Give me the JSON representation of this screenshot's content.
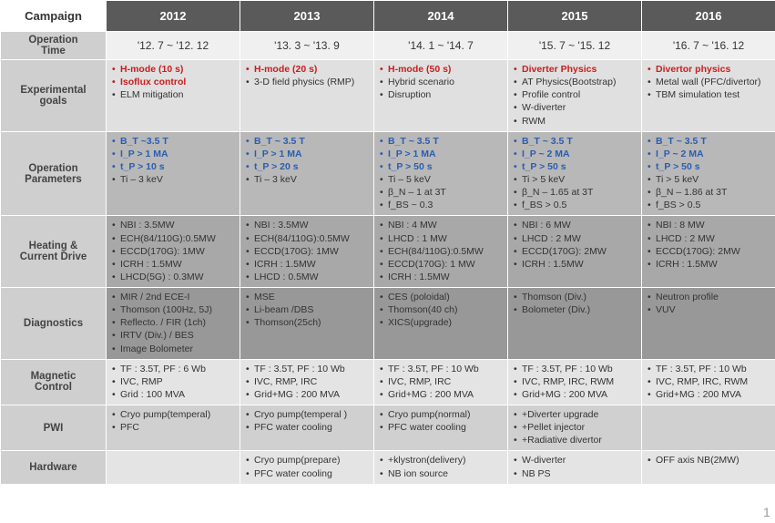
{
  "headers": {
    "rowLabel": "Campaign",
    "years": [
      "2012",
      "2013",
      "2014",
      "2015",
      "2016"
    ]
  },
  "rows": [
    {
      "label": "Operation Time",
      "cls": "row-opTime",
      "op": true,
      "cells": [
        "'12. 7  ~ '12. 12",
        "'13. 3  ~ '13. 9",
        "'14. 1  ~ '14. 7",
        "'15. 7  ~ '15. 12",
        "'16. 7  ~ '16. 12"
      ]
    },
    {
      "label": "Experimental goals",
      "cls": "row-goals",
      "cells": [
        [
          [
            "H-mode (10 s)",
            "red"
          ],
          [
            "Isoflux control",
            "red"
          ],
          [
            "ELM mitigation",
            ""
          ]
        ],
        [
          [
            "H-mode (20 s)",
            "red"
          ],
          [
            "3-D field physics (RMP)",
            ""
          ]
        ],
        [
          [
            "H-mode (50 s)",
            "red"
          ],
          [
            "Hybrid scenario",
            ""
          ],
          [
            "Disruption",
            ""
          ]
        ],
        [
          [
            "Diverter Physics",
            "red"
          ],
          [
            "AT Physics(Bootstrap)",
            ""
          ],
          [
            "Profile control",
            ""
          ],
          [
            "W-diverter",
            ""
          ],
          [
            "RWM",
            ""
          ]
        ],
        [
          [
            "Divertor physics",
            "red"
          ],
          [
            "Metal wall (PFC/divertor)",
            ""
          ],
          [
            "TBM simulation test",
            ""
          ]
        ]
      ]
    },
    {
      "label": "Operation Parameters",
      "cls": "row-params",
      "cells": [
        [
          [
            "B_T ~3.5 T",
            "blue"
          ],
          [
            "I_P > 1 MA",
            "blue"
          ],
          [
            "t_P > 10 s",
            "blue"
          ],
          [
            "Ti – 3 keV",
            ""
          ]
        ],
        [
          [
            "B_T ~ 3.5 T",
            "blue"
          ],
          [
            "I_P > 1 MA",
            "blue"
          ],
          [
            "t_P > 20 s",
            "blue"
          ],
          [
            "Ti – 3 keV",
            ""
          ]
        ],
        [
          [
            "B_T ~ 3.5 T",
            "blue"
          ],
          [
            "I_P > 1 MA",
            "blue"
          ],
          [
            "t_P > 50 s",
            "blue"
          ],
          [
            "Ti – 5 keV",
            ""
          ],
          [
            "β_N – 1  at 3T",
            ""
          ],
          [
            "f_BS ~ 0.3",
            ""
          ]
        ],
        [
          [
            "B_T ~ 3.5 T",
            "blue"
          ],
          [
            "I_P ~ 2 MA",
            "blue"
          ],
          [
            "t_P > 50 s",
            "blue"
          ],
          [
            "Ti > 5 keV",
            ""
          ],
          [
            "β_N – 1.65 at 3T",
            ""
          ],
          [
            "f_BS > 0.5",
            ""
          ]
        ],
        [
          [
            "B_T ~ 3.5 T",
            "blue"
          ],
          [
            "I_P ~ 2 MA",
            "blue"
          ],
          [
            "t_P > 50 s",
            "blue"
          ],
          [
            "Ti > 5 keV",
            ""
          ],
          [
            "β_N – 1.86 at 3T",
            ""
          ],
          [
            "f_BS > 0.5",
            ""
          ]
        ]
      ]
    },
    {
      "label": "Heating & Current Drive",
      "cls": "row-heating",
      "cells": [
        [
          [
            "NBI : 3.5MW",
            ""
          ],
          [
            "ECH(84/110G):0.5MW",
            ""
          ],
          [
            "ECCD(170G): 1MW",
            ""
          ],
          [
            "ICRH : 1.5MW",
            ""
          ],
          [
            "LHCD(5G) : 0.3MW",
            ""
          ]
        ],
        [
          [
            "NBI : 3.5MW",
            ""
          ],
          [
            "ECH(84/110G):0.5MW",
            ""
          ],
          [
            "ECCD(170G): 1MW",
            ""
          ],
          [
            "ICRH : 1.5MW",
            ""
          ],
          [
            "LHCD : 0.5MW",
            ""
          ]
        ],
        [
          [
            "NBI : 4 MW",
            ""
          ],
          [
            "LHCD : 1 MW",
            ""
          ],
          [
            "ECH(84/110G):0.5MW",
            ""
          ],
          [
            "ECCD(170G): 1 MW",
            ""
          ],
          [
            "ICRH : 1.5MW",
            ""
          ]
        ],
        [
          [
            "NBI : 6 MW",
            ""
          ],
          [
            "LHCD : 2 MW",
            ""
          ],
          [
            "ECCD(170G): 2MW",
            ""
          ],
          [
            "ICRH : 1.5MW",
            ""
          ]
        ],
        [
          [
            "NBI : 8 MW",
            ""
          ],
          [
            "LHCD : 2 MW",
            ""
          ],
          [
            "ECCD(170G): 2MW",
            ""
          ],
          [
            "ICRH : 1.5MW",
            ""
          ]
        ]
      ]
    },
    {
      "label": "Diagnostics",
      "cls": "row-diag",
      "cells": [
        [
          [
            "MIR / 2nd ECE-I",
            ""
          ],
          [
            "Thomson (100Hz, 5J)",
            ""
          ],
          [
            "Reflecto. / FIR (1ch)",
            ""
          ],
          [
            "IRTV (Div.) / BES",
            ""
          ],
          [
            "Image Bolometer",
            ""
          ]
        ],
        [
          [
            "MSE",
            ""
          ],
          [
            "Li-beam /DBS",
            ""
          ],
          [
            "Thomson(25ch)",
            ""
          ]
        ],
        [
          [
            "CES (poloidal)",
            ""
          ],
          [
            "Thomson(40 ch)",
            ""
          ],
          [
            "XICS(upgrade)",
            ""
          ]
        ],
        [
          [
            "Thomson (Div.)",
            ""
          ],
          [
            "Bolometer (Div.)",
            ""
          ]
        ],
        [
          [
            "Neutron profile",
            ""
          ],
          [
            "VUV",
            ""
          ]
        ]
      ]
    },
    {
      "label": "Magnetic Control",
      "cls": "row-mag",
      "cells": [
        [
          [
            "TF : 3.5T, PF : 6 Wb",
            ""
          ],
          [
            "IVC, RMP",
            ""
          ],
          [
            "Grid : 100 MVA",
            ""
          ]
        ],
        [
          [
            "TF : 3.5T, PF : 10 Wb",
            ""
          ],
          [
            "IVC, RMP, IRC",
            ""
          ],
          [
            "Grid+MG : 200 MVA",
            ""
          ]
        ],
        [
          [
            "TF : 3.5T, PF : 10 Wb",
            ""
          ],
          [
            "IVC, RMP, IRC",
            ""
          ],
          [
            "Grid+MG : 200 MVA",
            ""
          ]
        ],
        [
          [
            "TF : 3.5T, PF : 10 Wb",
            ""
          ],
          [
            "IVC, RMP, IRC, RWM",
            ""
          ],
          [
            "Grid+MG : 200 MVA",
            ""
          ]
        ],
        [
          [
            "TF : 3.5T, PF : 10 Wb",
            ""
          ],
          [
            "IVC, RMP, IRC, RWM",
            ""
          ],
          [
            "Grid+MG : 200 MVA",
            ""
          ]
        ]
      ]
    },
    {
      "label": "PWI",
      "cls": "row-pwi",
      "cells": [
        [
          [
            "Cryo pump(temperal)",
            ""
          ],
          [
            "PFC",
            ""
          ]
        ],
        [
          [
            "Cryo pump(temperal )",
            ""
          ],
          [
            "PFC water cooling",
            ""
          ]
        ],
        [
          [
            "Cryo pump(normal)",
            ""
          ],
          [
            "PFC water cooling",
            ""
          ]
        ],
        [
          [
            "+Diverter upgrade",
            ""
          ],
          [
            "+Pellet injector",
            ""
          ],
          [
            "+Radiative divertor",
            ""
          ]
        ],
        []
      ]
    },
    {
      "label": "Hardware",
      "cls": "row-hw",
      "cells": [
        [],
        [
          [
            "Cryo pump(prepare)",
            ""
          ],
          [
            "PFC water cooling",
            ""
          ]
        ],
        [
          [
            "+klystron(delivery)",
            ""
          ],
          [
            "NB ion source",
            ""
          ]
        ],
        [
          [
            "W-diverter",
            ""
          ],
          [
            "NB PS",
            ""
          ]
        ],
        [
          [
            "OFF axis NB(2MW)",
            ""
          ]
        ]
      ]
    }
  ],
  "pageNumber": "1"
}
